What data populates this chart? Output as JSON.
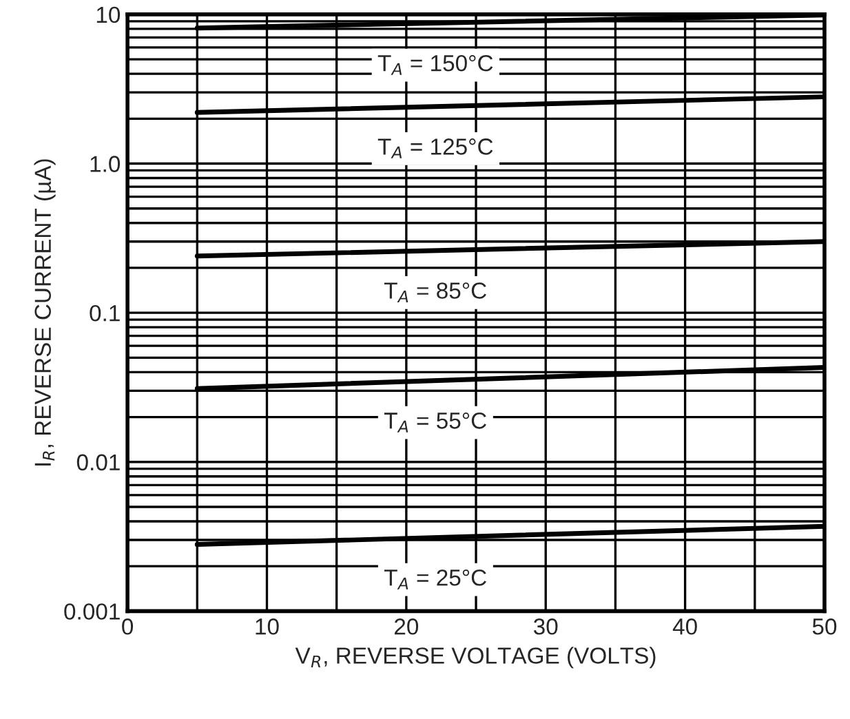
{
  "chart_data": {
    "type": "line",
    "xlabel": "V$_{R}$, REVERSE VOLTAGE (VOLTS)",
    "ylabel": "I$_{R}$, REVERSE CURRENT (µA)",
    "log": "y",
    "grid": true,
    "legend": false,
    "marker": "none",
    "line_style": "solid",
    "xlim": [
      0,
      50
    ],
    "ylim": [
      0.001,
      10
    ],
    "xticks": [
      0,
      {
        "value": 5,
        "label": null
      },
      10,
      {
        "value": 15,
        "label": null
      },
      20,
      {
        "value": 25,
        "label": null
      },
      30,
      {
        "value": 35,
        "label": null
      },
      40,
      {
        "value": 45,
        "label": null
      },
      50
    ],
    "yticks": [
      {
        "value": 0.001,
        "label": "0.001"
      },
      {
        "value": 0.01,
        "label": "0.01"
      },
      {
        "value": 0.1,
        "label": "0.1"
      },
      {
        "value": 1,
        "label": "1.0"
      },
      {
        "value": 10,
        "label": "10"
      }
    ],
    "x": [
      5,
      50
    ],
    "series": [
      {
        "name": "T$_{A}$ = 150°C",
        "color": "#000000",
        "values": [
          8.1,
          9.9
        ]
      },
      {
        "name": "T$_{A}$ = 125°C",
        "color": "#000000",
        "values": [
          2.2,
          2.8
        ]
      },
      {
        "name": "T$_{A}$ = 85°C",
        "color": "#000000",
        "values": [
          0.24,
          0.3
        ]
      },
      {
        "name": "T$_{A}$ = 55°C",
        "color": "#000000",
        "values": [
          0.031,
          0.043
        ]
      },
      {
        "name": "T$_{A}$ = 25°C",
        "color": "#000000",
        "values": [
          0.0028,
          0.0037
        ]
      }
    ]
  }
}
